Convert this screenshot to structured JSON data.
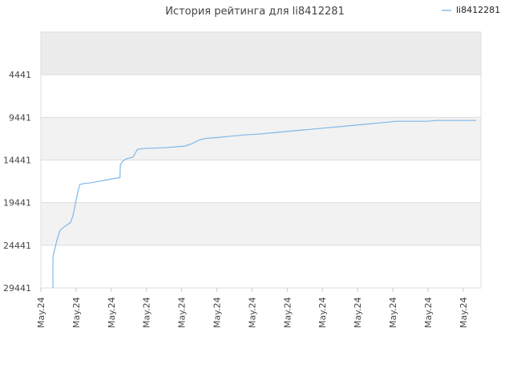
{
  "chart_data": {
    "type": "line",
    "title": "История рейтинга для li8412281",
    "xlabel": "",
    "ylabel": "",
    "y_inverted": true,
    "ylim": [
      29441,
      -559
    ],
    "yticks": [
      4441,
      9441,
      14441,
      19441,
      24441,
      29441
    ],
    "xticks": [
      "May.24",
      "May.24",
      "May.24",
      "May.24",
      "May.24",
      "May.24",
      "May.24",
      "May.24",
      "May.24",
      "May.24",
      "May.24",
      "May.24",
      "May.24"
    ],
    "grid": true,
    "legend_position": "top-right",
    "colors": {
      "series": "#7fb8ea",
      "band": "#f2f2f2",
      "band_top": "#ececec",
      "grid": "#dddddd"
    },
    "series": [
      {
        "name": "li8412281",
        "points": [
          [
            0.0,
            29441
          ],
          [
            0.0,
            25800
          ],
          [
            0.2,
            24100
          ],
          [
            0.4,
            22700
          ],
          [
            0.7,
            22200
          ],
          [
            1.0,
            21800
          ],
          [
            1.15,
            21000
          ],
          [
            1.3,
            19500
          ],
          [
            1.45,
            18000
          ],
          [
            1.55,
            17300
          ],
          [
            1.8,
            17200
          ],
          [
            2.2,
            17100
          ],
          [
            2.6,
            16950
          ],
          [
            3.0,
            16800
          ],
          [
            3.4,
            16650
          ],
          [
            3.85,
            16500
          ],
          [
            3.87,
            15000
          ],
          [
            4.0,
            14600
          ],
          [
            4.2,
            14300
          ],
          [
            4.6,
            14100
          ],
          [
            4.85,
            13200
          ],
          [
            5.2,
            13100
          ],
          [
            5.8,
            13050
          ],
          [
            6.4,
            13000
          ],
          [
            7.0,
            12900
          ],
          [
            7.6,
            12800
          ],
          [
            8.0,
            12500
          ],
          [
            8.4,
            12100
          ],
          [
            8.8,
            11900
          ],
          [
            9.5,
            11800
          ],
          [
            10.2,
            11650
          ],
          [
            11.0,
            11500
          ],
          [
            11.8,
            11400
          ],
          [
            12.6,
            11250
          ],
          [
            13.4,
            11100
          ],
          [
            14.2,
            10950
          ],
          [
            15.0,
            10800
          ],
          [
            15.8,
            10650
          ],
          [
            16.6,
            10500
          ],
          [
            17.4,
            10350
          ],
          [
            18.2,
            10200
          ],
          [
            19.0,
            10050
          ],
          [
            19.7,
            9900
          ],
          [
            20.5,
            9900
          ],
          [
            21.5,
            9900
          ],
          [
            22.0,
            9800
          ],
          [
            23.0,
            9800
          ],
          [
            24.0,
            9800
          ],
          [
            24.3,
            9800
          ]
        ]
      }
    ]
  }
}
